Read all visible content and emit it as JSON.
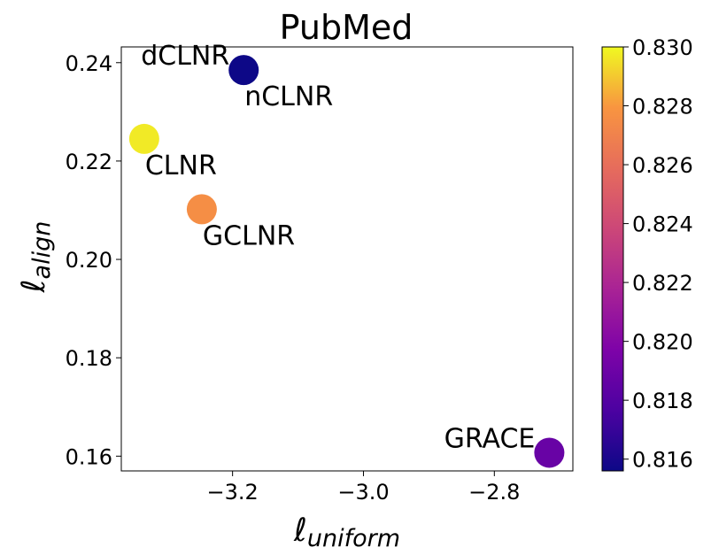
{
  "chart_data": {
    "type": "scatter",
    "title": "PubMed",
    "xlabel": {
      "symbol": "ℓ",
      "subscript": "uniform"
    },
    "ylabel": {
      "symbol": "ℓ",
      "subscript": "align"
    },
    "xlim": [
      -3.37,
      -2.68
    ],
    "ylim": [
      0.157,
      0.2432
    ],
    "xticks": [
      -3.2,
      -3.0,
      -2.8
    ],
    "xtick_labels": [
      "−3.2",
      "−3.0",
      "−2.8"
    ],
    "yticks": [
      0.16,
      0.18,
      0.2,
      0.22,
      0.24
    ],
    "ytick_labels": [
      "0.16",
      "0.18",
      "0.20",
      "0.22",
      "0.24"
    ],
    "grid": false,
    "colorbar": {
      "cmap": "plasma",
      "range": [
        0.8156,
        0.83
      ],
      "ticks": [
        0.816,
        0.818,
        0.82,
        0.822,
        0.824,
        0.826,
        0.828,
        0.83
      ],
      "tick_labels": [
        "0.816",
        "0.818",
        "0.820",
        "0.822",
        "0.824",
        "0.826",
        "0.828",
        "0.830"
      ]
    },
    "points": [
      {
        "label": "dCLNR",
        "x": -3.183,
        "y": 0.2385,
        "c": 0.8156,
        "label_pos": "left"
      },
      {
        "label": "nCLNR",
        "x": -3.183,
        "y": 0.2385,
        "c": 0.8156,
        "label_pos": "below-right"
      },
      {
        "label": "CLNR",
        "x": -3.335,
        "y": 0.2245,
        "c": 0.8297,
        "label_pos": "below-right"
      },
      {
        "label": "GCLNR",
        "x": -3.247,
        "y": 0.2102,
        "c": 0.8276,
        "label_pos": "below-right"
      },
      {
        "label": "GRACE",
        "x": -2.716,
        "y": 0.1607,
        "c": 0.8188,
        "label_pos": "left"
      }
    ]
  }
}
